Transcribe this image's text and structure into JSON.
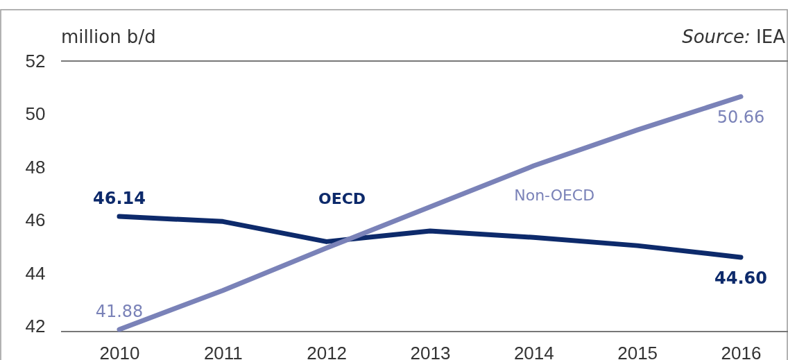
{
  "chart_data": {
    "type": "line",
    "ylabel": "million b/d",
    "annotations": [
      "Source: IEA"
    ],
    "categories": [
      "2010",
      "2011",
      "2012",
      "2013",
      "2014",
      "2015",
      "2016"
    ],
    "ylim": [
      41.8,
      52
    ],
    "yticks": [
      42,
      44,
      46,
      48,
      50,
      52
    ],
    "grid": false,
    "marker": "none",
    "line_style": "solid",
    "series": [
      {
        "name": "OECD",
        "color": "#0d2a6b",
        "values": [
          46.14,
          45.95,
          45.19,
          45.59,
          45.35,
          45.04,
          44.6
        ],
        "value_labels": [
          "46.14",
          null,
          null,
          null,
          null,
          null,
          "44.60"
        ]
      },
      {
        "name": "Non-OECD",
        "color": "#7a82b8",
        "values": [
          41.88,
          43.35,
          44.95,
          46.5,
          48.05,
          49.4,
          50.66
        ],
        "value_labels": [
          "41.88",
          null,
          null,
          null,
          null,
          null,
          "50.66"
        ]
      }
    ]
  }
}
